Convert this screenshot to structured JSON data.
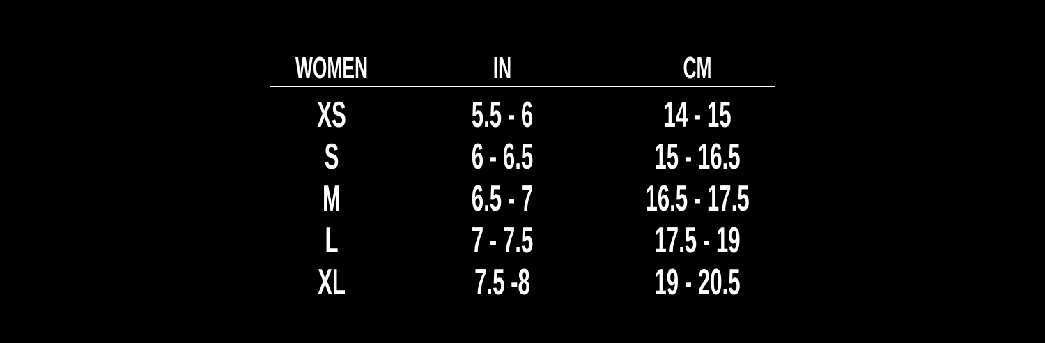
{
  "headers": [
    "WOMEN",
    "IN",
    "CM"
  ],
  "rows": [
    [
      "XS",
      "5.5 - 6",
      "14 - 15"
    ],
    [
      "S",
      "6 - 6.5",
      "15 - 16.5"
    ],
    [
      "M",
      "6.5 - 7",
      "16.5 - 17.5"
    ],
    [
      "L",
      "7 - 7.5",
      "17.5 - 19"
    ],
    [
      "XL",
      "7.5 -8",
      "19 - 20.5"
    ]
  ],
  "colors": {
    "background": "#000000",
    "text": "#ffffff"
  }
}
